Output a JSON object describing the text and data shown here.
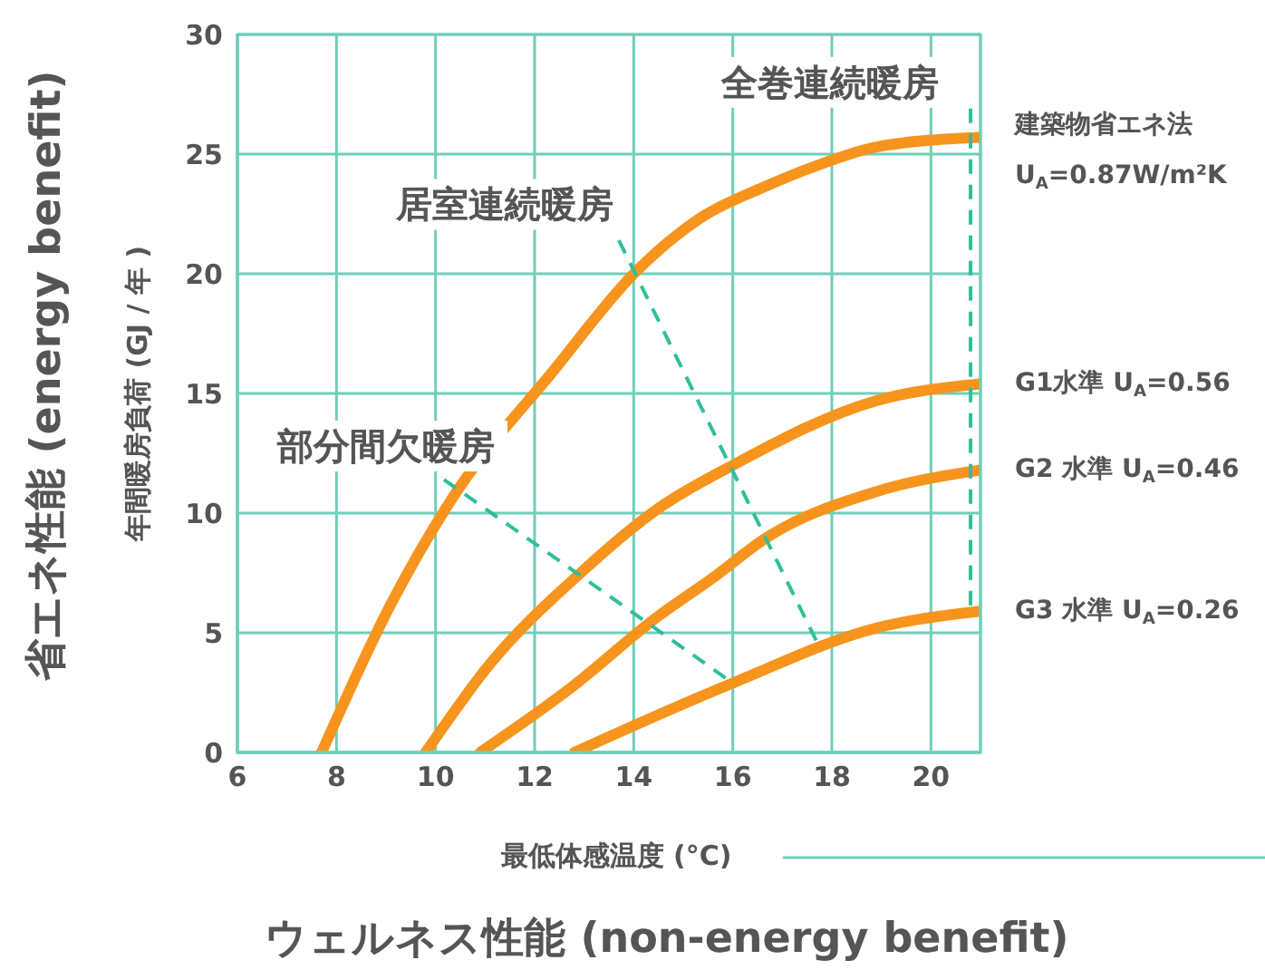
{
  "chart_data": {
    "type": "line",
    "xlabel": "最低体感温度 (°C)",
    "ylabel": "年間暖房負荷 (GJ / 年 )",
    "xlim": [
      6,
      21
    ],
    "xticks": [
      6,
      8,
      10,
      12,
      14,
      16,
      18,
      20
    ],
    "ylim": [
      0,
      30
    ],
    "yticks": [
      0,
      5,
      10,
      15,
      20,
      25,
      30
    ],
    "grid": true,
    "series": [
      {
        "name": "建築物省エネ法\nU$_{A}$=0.87W/m²K",
        "color": "#f7941d",
        "x": [
          7.7,
          9.1,
          10.3,
          12.4,
          14.05,
          15.4,
          16.6,
          17.8,
          18.9,
          21
        ],
        "values": [
          0,
          6.2,
          10.5,
          16.0,
          20.1,
          22.4,
          23.6,
          24.6,
          25.3,
          25.7
        ]
      },
      {
        "name": "G1水準 U$_{A}$=0.56",
        "color": "#f7941d",
        "x": [
          9.8,
          11.1,
          12.9,
          14.5,
          16.0,
          18.9,
          21
        ],
        "values": [
          0,
          3.7,
          7.45,
          10.2,
          12.0,
          14.7,
          15.4
        ]
      },
      {
        "name": "G2 水準 U$_{A}$=0.46",
        "color": "#f7941d",
        "x": [
          10.9,
          12.7,
          14.5,
          15.6,
          16.7,
          18.9,
          21
        ],
        "values": [
          0,
          2.65,
          5.7,
          7.3,
          9.0,
          10.9,
          11.8
        ]
      },
      {
        "name": "G3 水準 U$_{A}$=0.26",
        "color": "#f7941d",
        "x": [
          12.8,
          16.0,
          18.9,
          21
        ],
        "values": [
          0,
          2.9,
          5.2,
          5.9
        ]
      }
    ],
    "annotations": [
      {
        "text": "全巻連続暖房",
        "x": 20.8,
        "y": 5.9
      },
      {
        "text": "居室連続暖房",
        "x": 17.75,
        "y": 4.4
      },
      {
        "text": "部分間欠暖房",
        "x": 16.0,
        "y": 2.9
      },
      "省エネ性能 (energy benefit)",
      "ウェルネス性能 (non-energy benefit)"
    ]
  }
}
